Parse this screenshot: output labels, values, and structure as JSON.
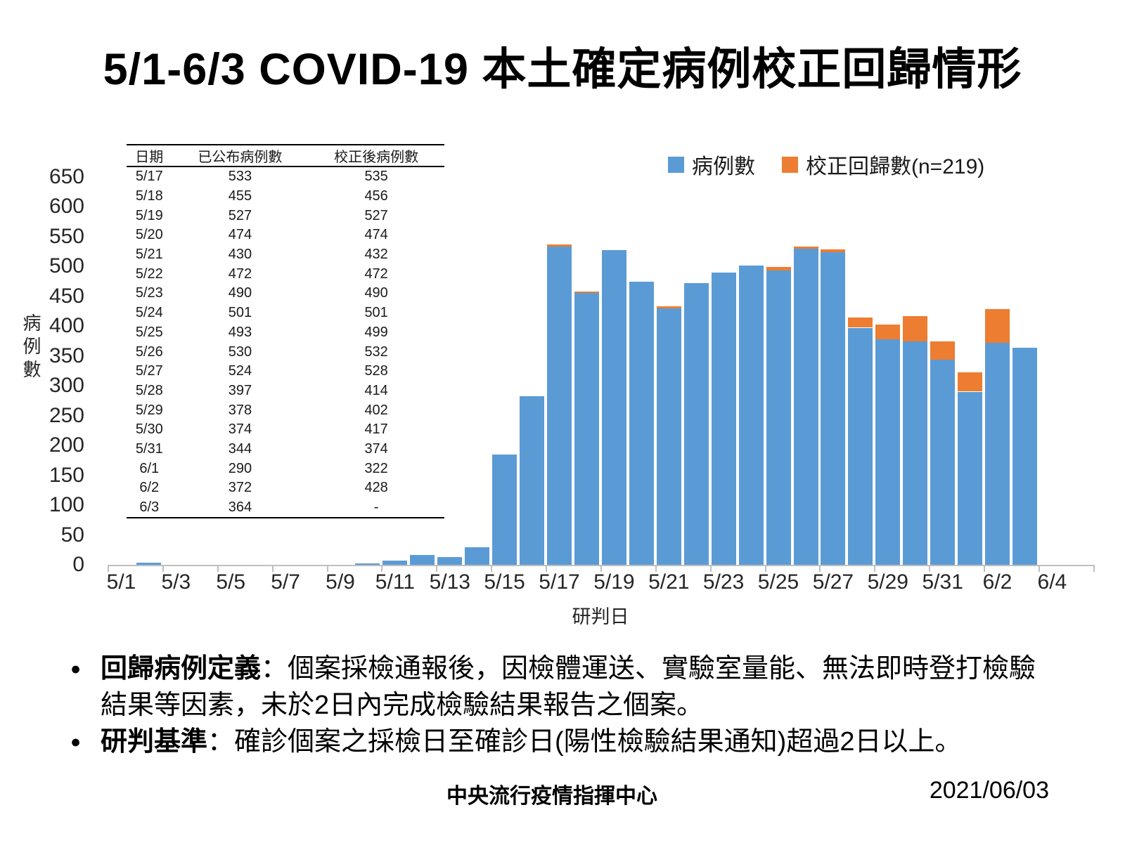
{
  "title": "5/1-6/3 COVID-19 本土確定病例校正回歸情形",
  "legend": {
    "items": [
      {
        "label": "病例數",
        "color": "#5B9BD5"
      },
      {
        "label": "校正回歸數(n=219)",
        "color": "#ED7D31"
      }
    ]
  },
  "table": {
    "columns": [
      "日期",
      "已公布病例數",
      "校正後病例數"
    ],
    "rows": [
      [
        "5/17",
        "533",
        "535"
      ],
      [
        "5/18",
        "455",
        "456"
      ],
      [
        "5/19",
        "527",
        "527"
      ],
      [
        "5/20",
        "474",
        "474"
      ],
      [
        "5/21",
        "430",
        "432"
      ],
      [
        "5/22",
        "472",
        "472"
      ],
      [
        "5/23",
        "490",
        "490"
      ],
      [
        "5/24",
        "501",
        "501"
      ],
      [
        "5/25",
        "493",
        "499"
      ],
      [
        "5/26",
        "530",
        "532"
      ],
      [
        "5/27",
        "524",
        "528"
      ],
      [
        "5/28",
        "397",
        "414"
      ],
      [
        "5/29",
        "378",
        "402"
      ],
      [
        "5/30",
        "374",
        "417"
      ],
      [
        "5/31",
        "344",
        "374"
      ],
      [
        "6/1",
        "290",
        "322"
      ],
      [
        "6/2",
        "372",
        "428"
      ],
      [
        "6/3",
        "364",
        "-"
      ]
    ]
  },
  "chart_data": {
    "type": "bar",
    "stacked": true,
    "title": "5/1-6/3 COVID-19 本土確定病例校正回歸情形",
    "xlabel": "研判日",
    "ylabel": "病例數",
    "ylim": [
      0,
      650
    ],
    "y_tick_step": 50,
    "grid": false,
    "legend_position": "top-right",
    "x": [
      "5/1",
      "5/2",
      "5/3",
      "5/4",
      "5/5",
      "5/6",
      "5/7",
      "5/8",
      "5/9",
      "5/10",
      "5/11",
      "5/12",
      "5/13",
      "5/14",
      "5/15",
      "5/16",
      "5/17",
      "5/18",
      "5/19",
      "5/20",
      "5/21",
      "5/22",
      "5/23",
      "5/24",
      "5/25",
      "5/26",
      "5/27",
      "5/28",
      "5/29",
      "5/30",
      "5/31",
      "6/1",
      "6/2",
      "6/3"
    ],
    "x_tick_labels": [
      "5/1",
      "5/3",
      "5/5",
      "5/7",
      "5/9",
      "5/11",
      "5/13",
      "5/15",
      "5/17",
      "5/19",
      "5/21",
      "5/23",
      "5/25",
      "5/27",
      "5/29",
      "5/31",
      "6/2",
      "6/4"
    ],
    "series": [
      {
        "name": "病例數",
        "color": "#5B9BD5",
        "values": [
          0,
          4,
          0,
          0,
          0,
          0,
          0,
          0,
          0,
          2,
          7,
          16,
          13,
          29,
          185,
          283,
          533,
          455,
          527,
          474,
          430,
          472,
          490,
          501,
          493,
          530,
          524,
          397,
          378,
          374,
          344,
          290,
          372,
          364
        ]
      },
      {
        "name": "校正回歸數(n=219)",
        "color": "#ED7D31",
        "values": [
          0,
          0,
          0,
          0,
          0,
          0,
          0,
          0,
          0,
          0,
          0,
          0,
          0,
          0,
          0,
          0,
          2,
          1,
          0,
          0,
          2,
          0,
          0,
          0,
          6,
          2,
          4,
          17,
          24,
          43,
          30,
          32,
          56,
          0
        ]
      }
    ]
  },
  "notes": {
    "items": [
      {
        "label": "回歸病例定義",
        "text": "：個案採檢通報後，因檢體運送、實驗室量能、無法即時登打檢驗結果等因素，未於2日內完成檢驗結果報告之個案。"
      },
      {
        "label": "研判基準",
        "text": "：確診個案之採檢日至確診日(陽性檢驗結果通知)超過2日以上。"
      }
    ]
  },
  "footer": {
    "org": "中央流行疫情指揮中心",
    "date": "2021/06/03"
  }
}
